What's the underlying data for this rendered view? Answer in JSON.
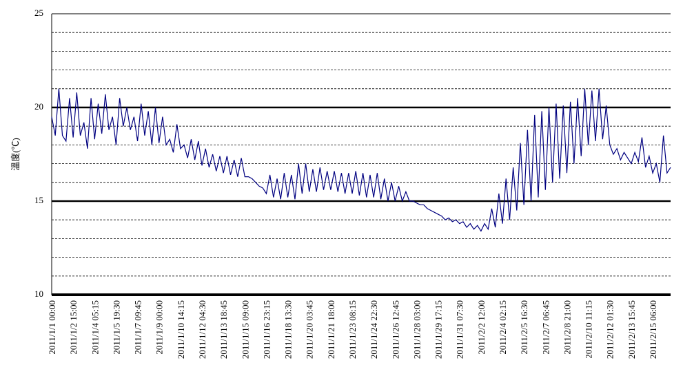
{
  "chart_data": {
    "type": "line",
    "y_label": "溫度(℃)",
    "categories": [
      "2011/1/1 00:00",
      null,
      null,
      null,
      null,
      null,
      "2011/1/2 15:00",
      null,
      null,
      null,
      null,
      null,
      "2011/1/4 05:15",
      null,
      null,
      null,
      null,
      null,
      "2011/1/5 19:30",
      null,
      null,
      null,
      null,
      null,
      "2011/1/7 09:45",
      null,
      null,
      null,
      null,
      null,
      "2011/1/9 00:00",
      null,
      null,
      null,
      null,
      null,
      "2011/1/10 14:15",
      null,
      null,
      null,
      null,
      null,
      "2011/1/12 04:30",
      null,
      null,
      null,
      null,
      null,
      "2011/1/13 18:45",
      null,
      null,
      null,
      null,
      null,
      "2011/1/15 09:00",
      null,
      null,
      null,
      null,
      null,
      "2011/1/16 23:15",
      null,
      null,
      null,
      null,
      null,
      "2011/1/18 13:30",
      null,
      null,
      null,
      null,
      null,
      "2011/1/20 03:45",
      null,
      null,
      null,
      null,
      null,
      "2011/1/21 18:00",
      null,
      null,
      null,
      null,
      null,
      "2011/1/23 08:15",
      null,
      null,
      null,
      null,
      null,
      "2011/1/24 22:30",
      null,
      null,
      null,
      null,
      null,
      "2011/1/26 12:45",
      null,
      null,
      null,
      null,
      null,
      "2011/1/28 03:00",
      null,
      null,
      null,
      null,
      null,
      "2011/1/29 17:15",
      null,
      null,
      null,
      null,
      null,
      "2011/1/31 07:30",
      null,
      null,
      null,
      null,
      null,
      "2011/2/2 12:00",
      null,
      null,
      null,
      null,
      null,
      "2011/2/4 02:15",
      null,
      null,
      null,
      null,
      null,
      "2011/2/5 16:30",
      null,
      null,
      null,
      null,
      null,
      "2011/2/7 06:45",
      null,
      null,
      null,
      null,
      null,
      "2011/2/8 21:00",
      null,
      null,
      null,
      null,
      null,
      "2011/2/10 11:15",
      null,
      null,
      null,
      null,
      null,
      "2011/2/12 01:30",
      null,
      null,
      null,
      null,
      null,
      "2011/2/13 15:45",
      null,
      null,
      null,
      null,
      null,
      "2011/2/15 06:00",
      null,
      null,
      null,
      null,
      null
    ],
    "series": [
      {
        "color": "#000080",
        "values": [
          19.5,
          18.5,
          21,
          18.5,
          18.2,
          20.5,
          18.4,
          20.8,
          18.5,
          19.2,
          17.8,
          20.5,
          18.3,
          20.2,
          18.6,
          20.7,
          18.8,
          19.5,
          18.0,
          20.5,
          19.0,
          20.0,
          18.8,
          19.5,
          18.2,
          20.2,
          18.5,
          19.8,
          18.0,
          20.0,
          18.1,
          19.5,
          18.0,
          18.3,
          17.6,
          19.1,
          17.8,
          18.0,
          17.3,
          18.3,
          17.2,
          18.2,
          16.9,
          17.8,
          16.8,
          17.5,
          16.6,
          17.4,
          16.5,
          17.4,
          16.4,
          17.2,
          16.3,
          17.3,
          16.3,
          16.3,
          16.2,
          16.0,
          15.8,
          15.7,
          15.4,
          16.4,
          15.2,
          16.2,
          15.1,
          16.5,
          15.2,
          16.4,
          15.1,
          17.0,
          15.4,
          17.0,
          15.5,
          16.7,
          15.5,
          16.8,
          15.6,
          16.6,
          15.6,
          16.6,
          15.5,
          16.5,
          15.4,
          16.5,
          15.4,
          16.6,
          15.3,
          16.5,
          15.2,
          16.4,
          15.2,
          16.5,
          15.1,
          16.2,
          15.0,
          16.0,
          15.0,
          15.8,
          15.0,
          15.5,
          15.0,
          15.0,
          14.9,
          14.8,
          14.8,
          14.6,
          14.5,
          14.4,
          14.3,
          14.2,
          14.0,
          14.1,
          13.9,
          14.0,
          13.8,
          13.9,
          13.6,
          13.8,
          13.5,
          13.7,
          13.4,
          13.8,
          13.5,
          14.6,
          13.6,
          15.4,
          13.8,
          16.2,
          14.0,
          16.8,
          14.5,
          18.1,
          14.8,
          18.8,
          15.0,
          19.6,
          15.2,
          19.8,
          15.6,
          20.0,
          16.0,
          20.2,
          16.2,
          20.1,
          16.5,
          20.3,
          17.0,
          20.5,
          17.4,
          21.0,
          18.0,
          20.9,
          18.2,
          21.0,
          18.3,
          20.1,
          18.0,
          17.5,
          17.8,
          17.2,
          17.6,
          17.3,
          17.0,
          17.6,
          17.1,
          18.4,
          16.8,
          17.4,
          16.5,
          17.0,
          16.0,
          18.5,
          16.5,
          16.8
        ]
      }
    ],
    "ylim": [
      10,
      25
    ],
    "yticks": [
      10,
      15,
      20,
      25
    ],
    "minor_yticks": [
      11,
      12,
      13,
      14,
      16,
      17,
      18,
      19,
      21,
      22,
      23,
      24
    ]
  }
}
